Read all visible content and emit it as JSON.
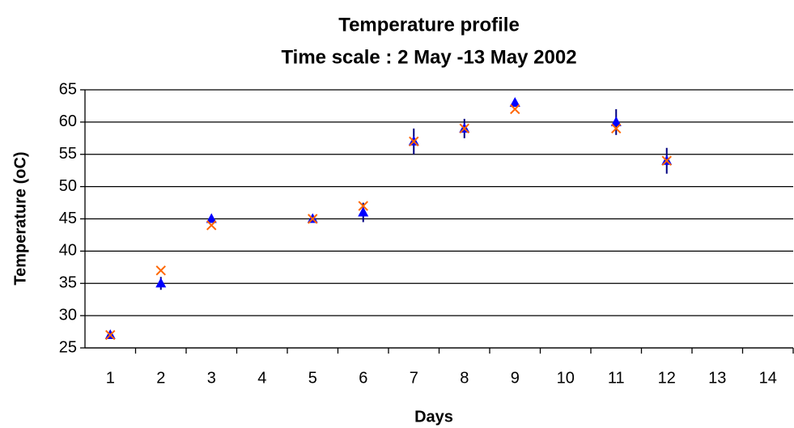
{
  "chart_data": {
    "type": "scatter",
    "title": "Temperature profile",
    "subtitle": "Time scale : 2 May -13 May 2002",
    "xlabel": "Days",
    "ylabel": "Temperature (oC)",
    "categories": [
      "1",
      "2",
      "3",
      "4",
      "5",
      "6",
      "7",
      "8",
      "9",
      "10",
      "11",
      "12",
      "13",
      "14"
    ],
    "series": [
      {
        "color": "#0000ff",
        "marker": "triangle",
        "error_color": "#000080",
        "values": [
          27,
          35,
          45,
          null,
          45,
          46,
          57,
          59,
          63,
          null,
          60,
          54,
          null,
          null
        ],
        "errors": [
          0.5,
          1,
          0.5,
          null,
          0.5,
          1.5,
          2,
          1.5,
          0.5,
          null,
          2,
          2,
          null,
          null
        ]
      },
      {
        "color": "#ff6600",
        "marker": "x",
        "values": [
          27,
          37,
          44,
          null,
          45,
          47,
          57,
          59,
          62,
          null,
          59,
          54,
          null,
          null
        ]
      }
    ],
    "ylim": [
      25,
      65
    ],
    "yticks": [
      25,
      30,
      35,
      40,
      45,
      50,
      55,
      60,
      65
    ],
    "grid": true
  }
}
